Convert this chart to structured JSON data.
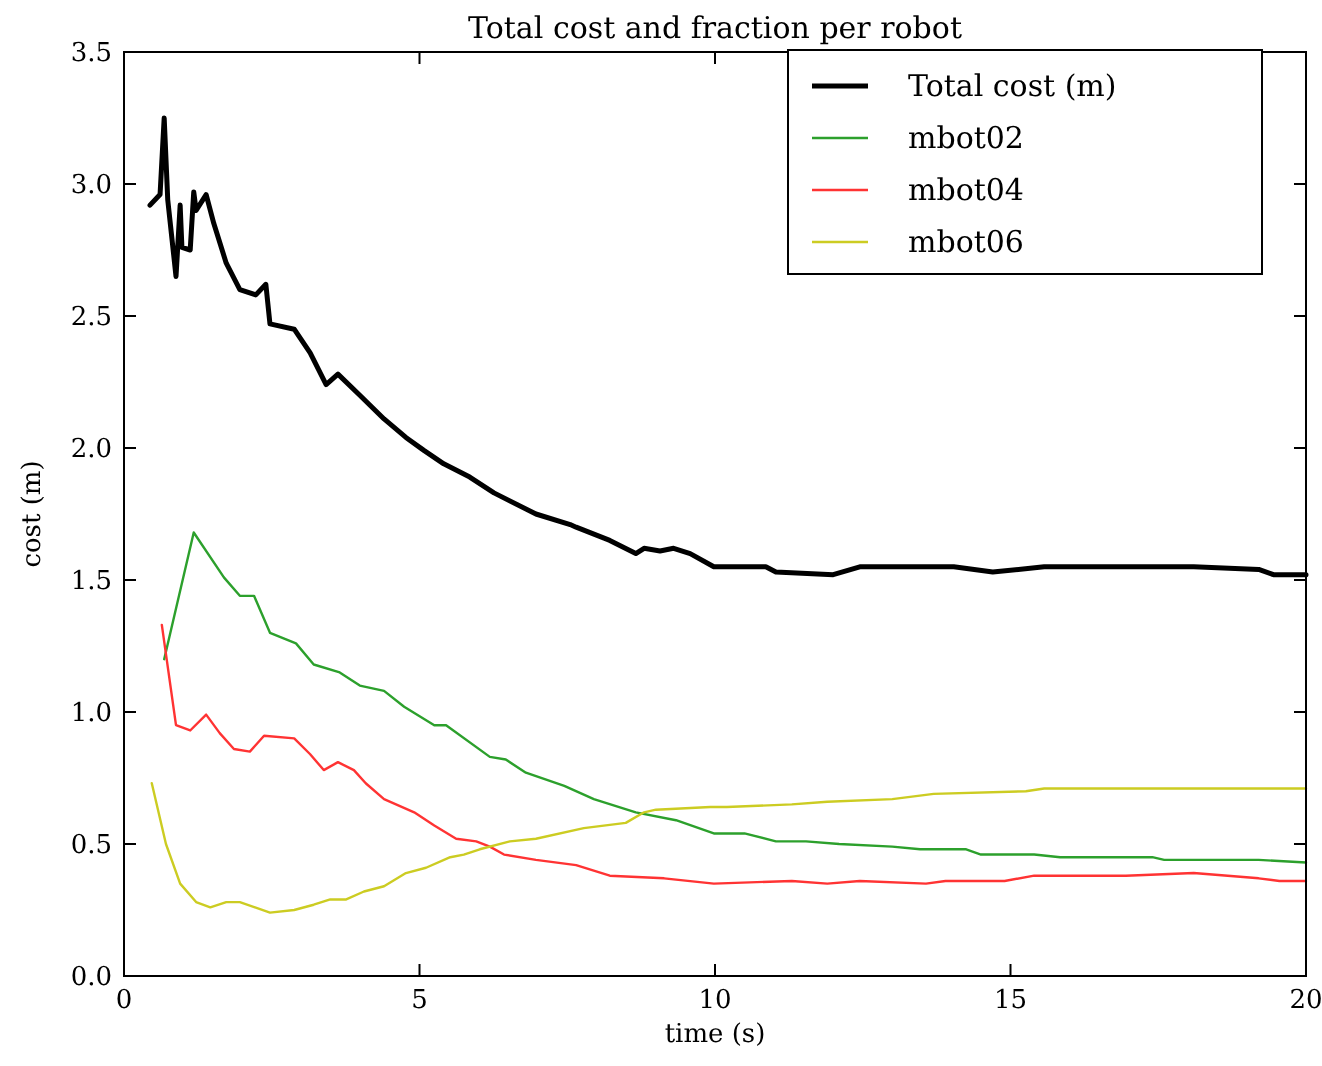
{
  "chart_data": {
    "type": "line",
    "title": "Total cost and fraction per robot",
    "xlabel": "time (s)",
    "ylabel": "cost (m)",
    "xlim": [
      0,
      20
    ],
    "xticks": [
      0,
      5,
      10,
      15,
      20
    ],
    "ylim": [
      0,
      3.5
    ],
    "yticks": [
      {
        "value": 0,
        "label": "0.0"
      },
      0.5,
      {
        "value": 1,
        "label": "1.0"
      },
      1.5,
      {
        "value": 2,
        "label": "2.0"
      },
      2.5,
      {
        "value": 3,
        "label": "3.0"
      },
      3.5
    ],
    "legend": "top right",
    "grid": false,
    "marker": "none",
    "line_style": "solid",
    "series": [
      {
        "name": "Total cost (m)",
        "color": "#000000",
        "x": [
          0.44,
          0.61,
          0.68,
          0.74,
          0.88,
          0.95,
          0.98,
          1.12,
          1.18,
          1.22,
          1.39,
          1.52,
          1.73,
          1.96,
          2.23,
          2.4,
          2.47,
          2.88,
          3.15,
          3.42,
          3.62,
          3.99,
          4.4,
          4.77,
          5.08,
          5.41,
          5.85,
          6.26,
          6.97,
          7.55,
          7.65,
          8.22,
          8.66,
          8.8,
          9.07,
          9.3,
          9.58,
          9.98,
          10.86,
          11.03,
          12.0,
          12.45,
          14.04,
          14.7,
          15.57,
          18.1,
          19.2,
          19.45,
          20
        ],
        "values": [
          2.92,
          2.96,
          3.25,
          2.94,
          2.65,
          2.92,
          2.76,
          2.75,
          2.97,
          2.9,
          2.96,
          2.85,
          2.7,
          2.6,
          2.58,
          2.62,
          2.47,
          2.45,
          2.36,
          2.24,
          2.28,
          2.2,
          2.11,
          2.04,
          1.99,
          1.94,
          1.89,
          1.83,
          1.75,
          1.71,
          1.7,
          1.65,
          1.6,
          1.62,
          1.61,
          1.62,
          1.6,
          1.55,
          1.55,
          1.53,
          1.52,
          1.55,
          1.55,
          1.53,
          1.55,
          1.55,
          1.54,
          1.52,
          1.52
        ]
      },
      {
        "name": "mbot02",
        "color": "#2ca02c",
        "x": [
          0.68,
          1.18,
          1.69,
          1.96,
          2.2,
          2.47,
          2.91,
          3.21,
          3.65,
          3.99,
          4.4,
          4.74,
          5.25,
          5.45,
          6.19,
          6.46,
          6.8,
          7.45,
          7.95,
          8.66,
          9.34,
          9.98,
          10.5,
          11.03,
          11.54,
          12.1,
          13.0,
          13.47,
          14.25,
          14.5,
          15.4,
          15.84,
          17.4,
          17.6,
          19.2,
          20
        ],
        "values": [
          1.2,
          1.68,
          1.51,
          1.44,
          1.44,
          1.3,
          1.26,
          1.18,
          1.15,
          1.1,
          1.08,
          1.02,
          0.95,
          0.95,
          0.83,
          0.82,
          0.77,
          0.72,
          0.67,
          0.62,
          0.59,
          0.54,
          0.54,
          0.51,
          0.51,
          0.5,
          0.49,
          0.48,
          0.48,
          0.46,
          0.46,
          0.45,
          0.45,
          0.44,
          0.44,
          0.43
        ]
      },
      {
        "name": "mbot04",
        "color": "#ff3333",
        "x": [
          0.64,
          0.88,
          1.12,
          1.39,
          1.62,
          1.86,
          2.13,
          2.37,
          2.88,
          3.15,
          3.38,
          3.62,
          3.89,
          4.09,
          4.4,
          4.91,
          5.25,
          5.62,
          5.96,
          6.19,
          6.43,
          6.97,
          7.65,
          8.22,
          9.14,
          9.98,
          11.3,
          11.9,
          12.45,
          13.57,
          13.9,
          14.9,
          15.4,
          16.95,
          18.1,
          19.2,
          19.55,
          20
        ],
        "values": [
          1.33,
          0.95,
          0.93,
          0.99,
          0.92,
          0.86,
          0.85,
          0.91,
          0.9,
          0.84,
          0.78,
          0.81,
          0.78,
          0.73,
          0.67,
          0.62,
          0.57,
          0.52,
          0.51,
          0.49,
          0.46,
          0.44,
          0.42,
          0.38,
          0.37,
          0.35,
          0.36,
          0.35,
          0.36,
          0.35,
          0.36,
          0.36,
          0.38,
          0.38,
          0.39,
          0.37,
          0.36,
          0.36
        ]
      },
      {
        "name": "mbot06",
        "color": "#cccc22",
        "x": [
          0.47,
          0.71,
          0.95,
          1.22,
          1.46,
          1.73,
          1.96,
          2.47,
          2.88,
          3.21,
          3.49,
          3.76,
          4.06,
          4.4,
          4.77,
          5.11,
          5.52,
          5.75,
          6.02,
          6.53,
          6.97,
          7.78,
          8.49,
          8.8,
          9.0,
          9.92,
          10.2,
          11.3,
          11.9,
          13.0,
          13.7,
          15.26,
          15.57,
          20
        ],
        "values": [
          0.73,
          0.5,
          0.35,
          0.28,
          0.26,
          0.28,
          0.28,
          0.24,
          0.25,
          0.27,
          0.29,
          0.29,
          0.32,
          0.34,
          0.39,
          0.41,
          0.45,
          0.46,
          0.48,
          0.51,
          0.52,
          0.56,
          0.58,
          0.62,
          0.63,
          0.64,
          0.64,
          0.65,
          0.66,
          0.67,
          0.69,
          0.7,
          0.71,
          0.71
        ]
      }
    ]
  }
}
